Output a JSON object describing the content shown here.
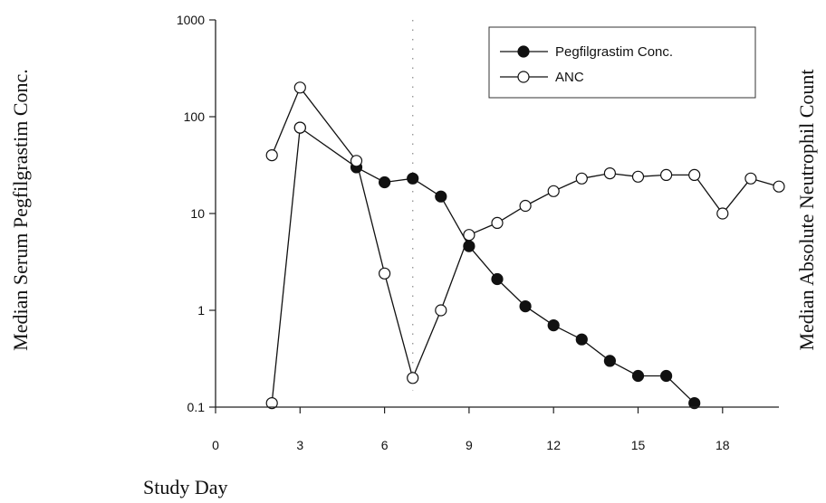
{
  "chart_data": {
    "type": "line",
    "title": "",
    "ylabel": "Median Serum Pegfilgrastim Conc.",
    "y2label": "Median Absolute Neutrophil Count",
    "xlabel": "Study Day",
    "xlim": [
      0,
      20
    ],
    "xticks": [
      0,
      3,
      6,
      9,
      12,
      15,
      18
    ],
    "xtick_labels": [
      "0",
      "3",
      "6",
      "9",
      "12",
      "15",
      "18"
    ],
    "yscale": "log",
    "ylim": [
      0.1,
      1000
    ],
    "yticks": [
      0.1,
      1,
      10,
      100,
      1000
    ],
    "ytick_labels": [
      "0.1",
      "1",
      "10",
      "100",
      "1000"
    ],
    "vline_x": 7,
    "grid": false,
    "legend_position": "top-right",
    "series": [
      {
        "name": "Pegfilgrastim Conc.",
        "marker": "filled-circle",
        "color": "#111111",
        "x": [
          3,
          5,
          6,
          7,
          8,
          9,
          10,
          11,
          12,
          13,
          14,
          15,
          16,
          17
        ],
        "y": [
          77,
          30,
          21,
          23,
          15,
          4.6,
          2.1,
          1.1,
          0.7,
          0.5,
          0.3,
          0.21,
          0.21,
          0.11
        ]
      },
      {
        "name": "ANC",
        "marker": "open-circle",
        "color": "#111111",
        "x": [
          2,
          3,
          5,
          6,
          7,
          8,
          9,
          10,
          11,
          12,
          13,
          14,
          15,
          16,
          17,
          18,
          19,
          20
        ],
        "y": [
          40,
          200,
          35,
          2.4,
          0.2,
          1.0,
          6,
          8,
          12,
          17,
          23,
          26,
          24,
          25,
          25,
          10,
          23,
          19
        ]
      },
      {
        "name": "",
        "marker": "open-circle",
        "color": "#111111",
        "x": [
          2,
          3
        ],
        "y": [
          0.11,
          77
        ]
      }
    ]
  }
}
